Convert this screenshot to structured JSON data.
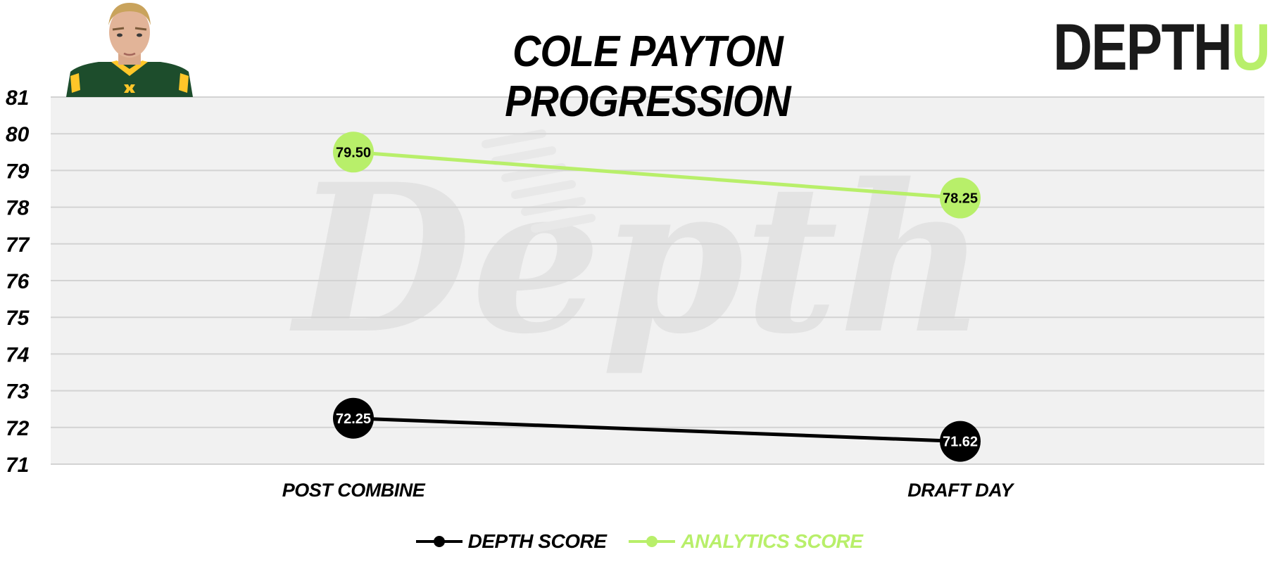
{
  "header": {
    "title": "COLE PAYTON PROGRESSION",
    "brand_main": "DEPTH",
    "brand_accent": "U"
  },
  "watermark": {
    "text": "Depth"
  },
  "colors": {
    "background": "#f1f1f1",
    "grid": "#d3d3d3",
    "depth_series": "#000000",
    "analytics_series": "#b8ef6a",
    "watermark": "#e3e3e3"
  },
  "chart_data": {
    "type": "line",
    "title": "COLE PAYTON PROGRESSION",
    "categories": [
      "POST COMBINE",
      "DRAFT DAY"
    ],
    "series": [
      {
        "name": "DEPTH SCORE",
        "values": [
          72.25,
          71.62
        ],
        "labels": [
          "72.25",
          "71.62"
        ],
        "color": "#000000",
        "label_color": "#ffffff"
      },
      {
        "name": "ANALYTICS SCORE",
        "values": [
          79.5,
          78.25
        ],
        "labels": [
          "79.50",
          "78.25"
        ],
        "color": "#b8ef6a",
        "label_color": "#000000"
      }
    ],
    "ylim": [
      71,
      81
    ],
    "yticks": [
      "71",
      "72",
      "73",
      "74",
      "75",
      "76",
      "77",
      "78",
      "79",
      "80",
      "81"
    ],
    "xlabel": "",
    "ylabel": "",
    "grid": true,
    "legend_position": "bottom-center"
  }
}
